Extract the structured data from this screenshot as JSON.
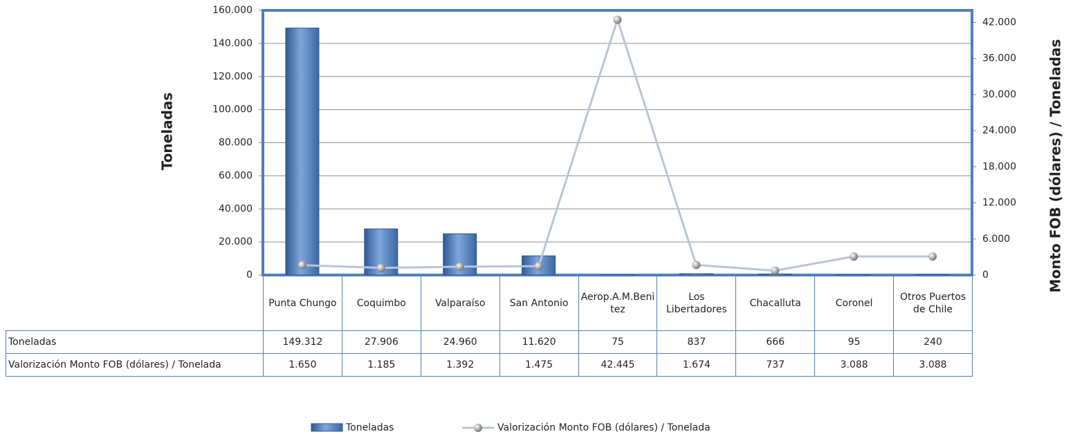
{
  "chart_data": {
    "type": "bar",
    "categories": [
      "Punta Chungo",
      "Coquimbo",
      "Valparaíso",
      "San Antonio",
      "Aerop.A.M.Benitez",
      "Los Libertadores",
      "Chacalluta",
      "Coronel",
      "Otros Puertos de Chile"
    ],
    "series": [
      {
        "name": "Toneladas",
        "type": "bar",
        "color": "#4f81bd",
        "values": [
          149312,
          27906,
          24960,
          11620,
          75,
          837,
          666,
          95,
          240
        ],
        "value_labels": [
          "149.312",
          "27.906",
          "24.960",
          "11.620",
          "75",
          "837",
          "666",
          "95",
          "240"
        ]
      },
      {
        "name": "Valorización Monto FOB (dólares) / Tonelada",
        "type": "line",
        "axis": "y2",
        "color": "#b9c4dc",
        "values": [
          1650,
          1185,
          1392,
          1475,
          42445,
          1674,
          737,
          3088,
          3088
        ],
        "value_labels": [
          "1.650",
          "1.185",
          "1.392",
          "1.475",
          "42.445",
          "1.674",
          "737",
          "3.088",
          "3.088"
        ]
      }
    ],
    "ylabel": "Toneladas",
    "y2label": "Monto FOB (dólares) / Toneladas",
    "ylim": [
      0,
      160000
    ],
    "yticks": [
      0,
      {
        "value": 20000,
        "label": "20.000"
      },
      {
        "value": 40000,
        "label": "40.000"
      },
      {
        "value": 60000,
        "label": "60.000"
      },
      {
        "value": 80000,
        "label": "80.000"
      },
      {
        "value": 100000,
        "label": "100.000"
      },
      {
        "value": 120000,
        "label": "120.000"
      },
      {
        "value": 140000,
        "label": "140.000"
      },
      {
        "value": 160000,
        "label": "160.000"
      }
    ],
    "y2lim": [
      0,
      44000
    ],
    "y2ticks": [
      0,
      {
        "value": 6000,
        "label": "6.000"
      },
      {
        "value": 12000,
        "label": "12.000"
      },
      {
        "value": 18000,
        "label": "18.000"
      },
      {
        "value": 24000,
        "label": "24.000"
      },
      {
        "value": 30000,
        "label": "30.000"
      },
      {
        "value": 36000,
        "label": "36.000"
      },
      {
        "value": 42000,
        "label": "42.000"
      }
    ],
    "grid": true,
    "legend": "bottom"
  }
}
